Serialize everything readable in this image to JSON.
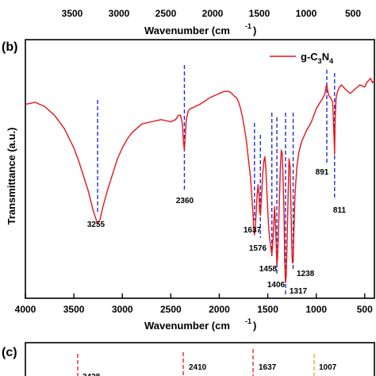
{
  "top_panel": {
    "xticks": [
      "3500",
      "3000",
      "2500",
      "2000",
      "1500",
      "1000",
      "500"
    ],
    "xlabel_main": "Wavenumber (cm",
    "xlabel_sup": "-1",
    "xlabel_end": ")"
  },
  "panel_b": {
    "label": "(b)",
    "ylabel": "Transmittance (a.u.)",
    "legend": {
      "prefix": "g-C",
      "sub1": "3",
      "mid": "N",
      "sub2": "4"
    },
    "colors": {
      "line": "#e8141a",
      "marker": "#1f2fd1",
      "frame": "#000000"
    }
  },
  "panel_c": {
    "label": "(c)",
    "peaks": [
      "2410",
      "1637",
      "1007",
      "3428"
    ],
    "colors": {
      "red_marker": "#e8141a",
      "orange_marker": "#f0a020"
    }
  },
  "chart_data": {
    "type": "line",
    "title": "",
    "xlabel": "Wavenumber (cm-1)",
    "ylabel": "Transmittance (a.u.)",
    "xlim": [
      4000,
      400
    ],
    "x_reversed": true,
    "xticks": [
      4000,
      3500,
      3000,
      2500,
      2000,
      1500,
      1000,
      500
    ],
    "yticks_shown": false,
    "legend": "top-right",
    "grid": false,
    "series": [
      {
        "name": "g-C3N4",
        "color": "#e8141a",
        "x": [
          4000,
          3900,
          3800,
          3700,
          3600,
          3500,
          3450,
          3400,
          3350,
          3300,
          3270,
          3255,
          3230,
          3200,
          3150,
          3100,
          3050,
          3000,
          2950,
          2900,
          2800,
          2700,
          2600,
          2500,
          2450,
          2420,
          2400,
          2380,
          2370,
          2360,
          2350,
          2340,
          2320,
          2300,
          2250,
          2200,
          2100,
          2000,
          1950,
          1900,
          1870,
          1850,
          1820,
          1800,
          1780,
          1760,
          1740,
          1720,
          1700,
          1680,
          1665,
          1650,
          1645,
          1637,
          1630,
          1620,
          1610,
          1600,
          1590,
          1585,
          1576,
          1570,
          1560,
          1550,
          1540,
          1530,
          1520,
          1510,
          1500,
          1490,
          1480,
          1470,
          1465,
          1458,
          1450,
          1440,
          1430,
          1420,
          1410,
          1406,
          1400,
          1390,
          1380,
          1370,
          1360,
          1350,
          1340,
          1330,
          1325,
          1317,
          1310,
          1300,
          1290,
          1280,
          1270,
          1260,
          1250,
          1245,
          1238,
          1230,
          1220,
          1200,
          1180,
          1150,
          1120,
          1100,
          1050,
          1000,
          960,
          930,
          910,
          900,
          891,
          885,
          870,
          850,
          830,
          815,
          811,
          805,
          795,
          780,
          760,
          740,
          700,
          650,
          600,
          550,
          500,
          480,
          460,
          440,
          420,
          400
        ],
        "y": [
          0.13,
          0.12,
          0.14,
          0.18,
          0.24,
          0.33,
          0.39,
          0.46,
          0.53,
          0.62,
          0.66,
          0.68,
          0.66,
          0.6,
          0.52,
          0.45,
          0.38,
          0.33,
          0.29,
          0.26,
          0.22,
          0.21,
          0.2,
          0.21,
          0.2,
          0.18,
          0.18,
          0.22,
          0.3,
          0.34,
          0.27,
          0.2,
          0.16,
          0.15,
          0.14,
          0.13,
          0.1,
          0.08,
          0.07,
          0.07,
          0.08,
          0.09,
          0.1,
          0.12,
          0.15,
          0.19,
          0.24,
          0.3,
          0.38,
          0.46,
          0.55,
          0.65,
          0.7,
          0.73,
          0.7,
          0.63,
          0.55,
          0.5,
          0.55,
          0.62,
          0.64,
          0.6,
          0.52,
          0.44,
          0.39,
          0.37,
          0.42,
          0.52,
          0.62,
          0.7,
          0.75,
          0.78,
          0.8,
          0.82,
          0.78,
          0.7,
          0.6,
          0.68,
          0.82,
          0.87,
          0.84,
          0.72,
          0.58,
          0.42,
          0.34,
          0.36,
          0.5,
          0.68,
          0.85,
          0.95,
          0.92,
          0.75,
          0.55,
          0.38,
          0.42,
          0.62,
          0.82,
          0.86,
          0.84,
          0.7,
          0.55,
          0.42,
          0.35,
          0.3,
          0.27,
          0.25,
          0.21,
          0.15,
          0.12,
          0.1,
          0.08,
          0.05,
          0.04,
          0.06,
          0.09,
          0.1,
          0.12,
          0.3,
          0.36,
          0.2,
          0.1,
          0.07,
          0.05,
          0.04,
          0.06,
          0.08,
          0.06,
          0.04,
          0.05,
          0.03,
          0.02,
          0.01,
          0.03,
          0.02
        ],
        "y_note": "y is relative transmittance drop (0 = top of trace, 1 = deepest); axis has no numeric ticks"
      }
    ],
    "annotations": [
      {
        "text": "3255",
        "x": 3255
      },
      {
        "text": "2360",
        "x": 2360
      },
      {
        "text": "1637",
        "x": 1637
      },
      {
        "text": "1576",
        "x": 1576
      },
      {
        "text": "1458",
        "x": 1458
      },
      {
        "text": "1406",
        "x": 1406
      },
      {
        "text": "1317",
        "x": 1317
      },
      {
        "text": "1238",
        "x": 1238
      },
      {
        "text": "891",
        "x": 891
      },
      {
        "text": "811",
        "x": 811
      }
    ]
  }
}
